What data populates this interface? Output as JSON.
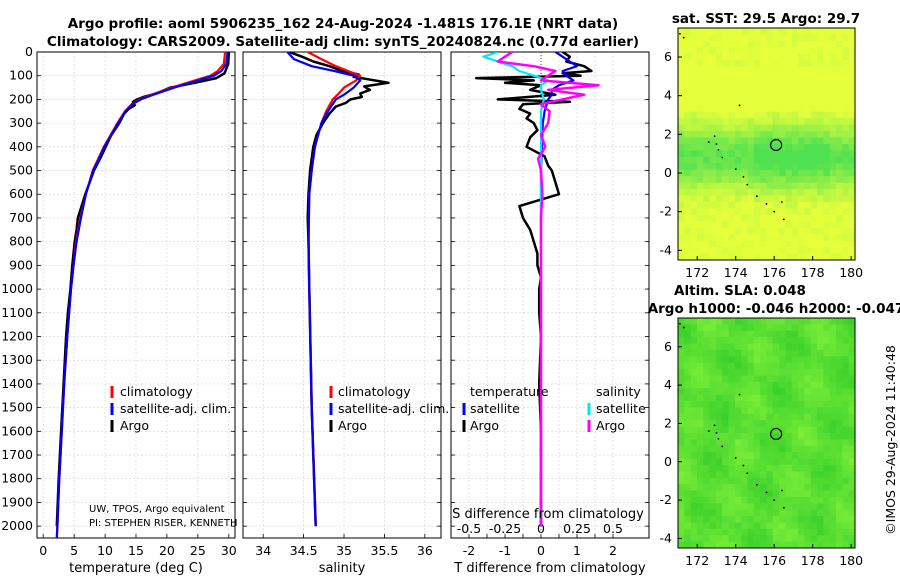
{
  "title": {
    "line1": "Argo profile: aoml 5906235_162 24-Aug-2024 -1.481S 176.1E (NRT data)",
    "line2": "Climatology: CARS2009. Satellite-adj clim: synTS_20240824.nc (0.77d earlier)"
  },
  "depth_ticks": [
    "0",
    "100",
    "200",
    "300",
    "400",
    "500",
    "600",
    "700",
    "800",
    "900",
    "1000",
    "1100",
    "1200",
    "1300",
    "1400",
    "1500",
    "1600",
    "1700",
    "1800",
    "1900",
    "2000"
  ],
  "panels": {
    "temperature": {
      "xlabel": "temperature (deg C)",
      "ticks": [
        "0",
        "5",
        "10",
        "15",
        "20",
        "25",
        "30"
      ],
      "legend": [
        "climatology",
        "satellite-adj. clim.",
        "Argo"
      ]
    },
    "salinity": {
      "xlabel": "salinity",
      "ticks": [
        "34",
        "34.5",
        "35",
        "35.5",
        "36"
      ],
      "legend": [
        "climatology",
        "satellite-adj. clim.",
        "Argo"
      ]
    },
    "difference": {
      "xlabel": "T difference from climatology",
      "sublabel": "S difference from climatology",
      "ticks_t": [
        "-2",
        "-1.5",
        "-1",
        "-0.5",
        "0",
        "0.5",
        "1",
        "1.5",
        "2"
      ],
      "ticks_s": [
        "-0.5",
        "-0.25",
        "0",
        "0.25",
        "0.5"
      ],
      "legend_t_header": "temperature",
      "legend_s_header": "salinity",
      "legend_t": [
        "satellite",
        "Argo"
      ],
      "legend_s": [
        "satellite",
        "Argo"
      ]
    }
  },
  "notes": {
    "line1": "UW, TPOS, Argo equivalent",
    "line2": "PI: STEPHEN RISER, KENNETH"
  },
  "maps": {
    "sst": {
      "title": "sat. SST: 29.5 Argo: 29.7",
      "yticks": [
        "6",
        "4",
        "2",
        "0",
        "-2",
        "-4"
      ],
      "xticks": [
        "172",
        "174",
        "176",
        "178",
        "180"
      ]
    },
    "sla": {
      "title1": "Altim. SLA: 0.048",
      "title2": "Argo h1000: -0.046 h2000: -0.047",
      "yticks": [
        "6",
        "4",
        "2",
        "0",
        "-2",
        "-4"
      ],
      "xticks": [
        "172",
        "174",
        "176",
        "178",
        "180"
      ]
    }
  },
  "stamp": "©IMOS 29-Aug-2024 11:40:48",
  "colors": {
    "climatology": "#ff0000",
    "satellite": "#0000ff",
    "argo": "#000000",
    "sat_salinity": "#00e5ff",
    "argo_salinity": "#ff00ff"
  },
  "chart_data": [
    {
      "type": "line",
      "name": "temperature",
      "xlabel": "temperature (deg C)",
      "ylabel": "depth",
      "xlim": [
        -1,
        31
      ],
      "ylim": [
        2050,
        0
      ],
      "series": [
        {
          "name": "climatology",
          "depth": [
            0,
            50,
            80,
            100,
            120,
            150,
            180,
            200,
            220,
            250,
            300,
            350,
            400,
            450,
            500,
            600,
            700,
            800,
            900,
            1000,
            1200,
            1400,
            1600,
            1800,
            2000,
            2050
          ],
          "values": [
            29.4,
            29.2,
            28.2,
            27.0,
            24.5,
            20.8,
            17.5,
            15.6,
            14.3,
            13.2,
            12.0,
            10.9,
            9.8,
            8.9,
            8.0,
            6.9,
            6.0,
            5.3,
            4.9,
            4.5,
            3.9,
            3.4,
            3.0,
            2.6,
            2.3,
            2.2
          ]
        },
        {
          "name": "satellite-adj. clim.",
          "depth": [
            0,
            50,
            80,
            100,
            120,
            150,
            180,
            200,
            220,
            250,
            300,
            350,
            400,
            450,
            500,
            600,
            700,
            800,
            900,
            1000,
            1200,
            1400,
            1600,
            1800,
            2000,
            2050
          ],
          "values": [
            29.8,
            29.6,
            28.8,
            27.6,
            25.0,
            21.2,
            17.8,
            15.8,
            14.4,
            13.3,
            12.1,
            11.0,
            9.9,
            9.0,
            8.1,
            6.9,
            6.1,
            5.4,
            4.9,
            4.5,
            3.9,
            3.4,
            3.0,
            2.6,
            2.3,
            2.2
          ]
        },
        {
          "name": "Argo",
          "depth": [
            0,
            50,
            90,
            110,
            130,
            150,
            175,
            190,
            200,
            210,
            225,
            240,
            260,
            300,
            350,
            400,
            450,
            500,
            550,
            600,
            650,
            700,
            750,
            800,
            850,
            900,
            1000,
            1100,
            1200,
            1400,
            1600,
            1800,
            2000
          ],
          "values": [
            30.0,
            29.9,
            29.3,
            28.0,
            24.5,
            20.5,
            18.3,
            16.2,
            15.2,
            14.5,
            14.8,
            13.8,
            13.1,
            12.3,
            11.0,
            10.1,
            9.2,
            8.2,
            7.5,
            6.8,
            6.2,
            5.6,
            5.4,
            5.1,
            4.9,
            4.7,
            4.4,
            4.0,
            3.7,
            3.3,
            2.9,
            2.5,
            2.2
          ]
        }
      ]
    },
    {
      "type": "line",
      "name": "salinity",
      "xlabel": "salinity",
      "ylabel": "depth",
      "xlim": [
        33.75,
        36.2
      ],
      "ylim": [
        2050,
        0
      ],
      "series": [
        {
          "name": "climatology",
          "depth": [
            0,
            30,
            60,
            80,
            100,
            120,
            150,
            180,
            200,
            250,
            300,
            400,
            500,
            600,
            800,
            1000,
            1500,
            2000
          ],
          "values": [
            34.55,
            34.72,
            34.9,
            35.05,
            35.2,
            35.15,
            35.0,
            34.92,
            34.86,
            34.78,
            34.72,
            34.64,
            34.6,
            34.57,
            34.56,
            34.57,
            34.6,
            34.65
          ]
        },
        {
          "name": "satellite-adj. clim.",
          "depth": [
            0,
            30,
            60,
            80,
            100,
            120,
            150,
            180,
            200,
            250,
            300,
            400,
            500,
            600,
            800,
            1000,
            1500,
            2000
          ],
          "values": [
            34.3,
            34.38,
            34.6,
            34.88,
            35.12,
            35.2,
            35.12,
            35.0,
            34.9,
            34.8,
            34.72,
            34.64,
            34.6,
            34.57,
            34.56,
            34.57,
            34.6,
            34.65
          ]
        },
        {
          "name": "Argo",
          "depth": [
            0,
            20,
            40,
            60,
            80,
            95,
            105,
            115,
            130,
            145,
            160,
            175,
            190,
            200,
            215,
            230,
            260,
            300,
            350,
            400,
            500,
            600,
            700,
            800,
            1000,
            1500,
            2000
          ],
          "values": [
            34.32,
            34.48,
            34.62,
            34.82,
            34.98,
            35.18,
            35.12,
            35.3,
            35.55,
            35.25,
            35.32,
            35.2,
            35.22,
            35.08,
            35.02,
            34.9,
            34.82,
            34.74,
            34.66,
            34.62,
            34.58,
            34.56,
            34.55,
            34.56,
            34.57,
            34.6,
            34.65
          ]
        }
      ]
    },
    {
      "type": "line",
      "name": "difference",
      "xlabel": "T difference from climatology",
      "x2label": "S difference from climatology",
      "ylabel": "depth",
      "xlim": [
        -2.5,
        3
      ],
      "ylim": [
        2050,
        0
      ],
      "series": [
        {
          "name": "temperature satellite",
          "depth": [
            0,
            20,
            40,
            60,
            80,
            100,
            120,
            140,
            160,
            180,
            200,
            250,
            300,
            500,
            1000,
            2000
          ],
          "values": [
            0.4,
            0.6,
            0.8,
            1.0,
            0.6,
            0.7,
            0.9,
            0.5,
            0.3,
            0.3,
            0.2,
            0.1,
            0.05,
            0.0,
            0.0,
            0.0
          ]
        },
        {
          "name": "temperature Argo",
          "depth": [
            0,
            20,
            40,
            60,
            80,
            90,
            100,
            110,
            120,
            130,
            140,
            160,
            180,
            200,
            210,
            220,
            240,
            260,
            280,
            300,
            330,
            360,
            400,
            440,
            480,
            500,
            550,
            600,
            650,
            700,
            750,
            800,
            850,
            900,
            950,
            1000,
            1100,
            1200,
            1400,
            1600,
            1800,
            2000
          ],
          "values": [
            0.6,
            0.8,
            0.7,
            1.2,
            1.4,
            0.6,
            1.1,
            -1.8,
            -0.2,
            -1.0,
            0.0,
            -0.3,
            0.4,
            -1.2,
            0.8,
            -0.5,
            -0.6,
            -0.3,
            -0.4,
            -0.2,
            -0.1,
            -0.3,
            -0.4,
            0.1,
            0.2,
            0.3,
            0.4,
            0.5,
            -0.6,
            -0.5,
            -0.3,
            -0.2,
            -0.1,
            -0.1,
            0.0,
            -0.05,
            -0.05,
            0.0,
            -0.05,
            0.0,
            0.0,
            0.0
          ]
        },
        {
          "name": "salinity satellite",
          "depth": [
            0,
            20,
            40,
            60,
            80,
            100,
            120,
            140,
            160,
            200,
            250,
            300,
            400,
            500,
            1000,
            2000
          ],
          "values": [
            -0.3,
            -0.4,
            -0.3,
            -0.2,
            -0.15,
            -0.05,
            0.05,
            0.0,
            0.0,
            0.02,
            0.0,
            0.0,
            0.0,
            0.0,
            0.0,
            0.0
          ]
        },
        {
          "name": "salinity Argo",
          "depth": [
            0,
            20,
            40,
            60,
            80,
            100,
            120,
            140,
            160,
            180,
            200,
            220,
            250,
            300,
            350,
            400,
            450,
            500,
            600,
            700,
            800,
            1000,
            1500,
            2000
          ],
          "values": [
            -0.2,
            -0.25,
            -0.3,
            -0.05,
            0.1,
            0.05,
            0.0,
            0.4,
            0.05,
            0.3,
            0.15,
            0.0,
            0.06,
            0.05,
            0.0,
            0.03,
            -0.02,
            0.0,
            0.01,
            0.0,
            0.0,
            0.0,
            0.0,
            0.0
          ]
        }
      ]
    }
  ]
}
